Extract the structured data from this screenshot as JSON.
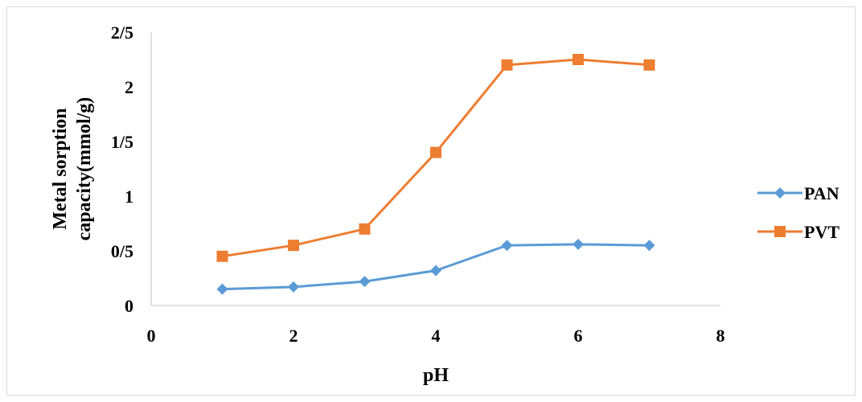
{
  "chart_data": {
    "type": "line",
    "xlabel": "pH",
    "ylabel_lines": [
      "Metal sorption",
      "capacity(mmol/g)"
    ],
    "x_ticks": [
      "0",
      "2",
      "4",
      "6",
      "8"
    ],
    "y_ticks": [
      "0",
      "0/5",
      "1",
      "1/5",
      "2",
      "2/5"
    ],
    "xlim": [
      0,
      8
    ],
    "ylim": [
      0,
      2.5
    ],
    "grid": false,
    "legend_position": "right",
    "series": [
      {
        "name": "PAN",
        "color": "#5B9BD5",
        "marker": "diamond",
        "x": [
          1,
          2,
          3,
          4,
          5,
          6,
          7
        ],
        "y": [
          0.15,
          0.17,
          0.22,
          0.32,
          0.55,
          0.56,
          0.55
        ]
      },
      {
        "name": "PVT",
        "color": "#ED7D31",
        "marker": "square",
        "x": [
          1,
          2,
          3,
          4,
          5,
          6,
          7
        ],
        "y": [
          0.45,
          0.55,
          0.7,
          1.4,
          2.2,
          2.25,
          2.2
        ]
      }
    ]
  }
}
